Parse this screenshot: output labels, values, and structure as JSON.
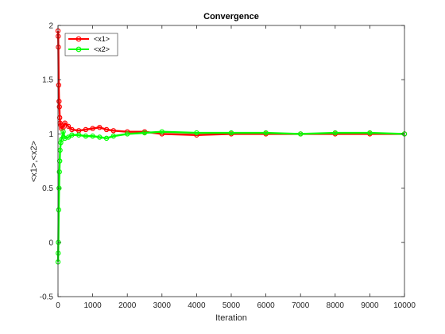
{
  "chart_data": {
    "type": "line",
    "title": "Convergence",
    "xlabel": "Iteration",
    "ylabel": "<x1>,<x2>",
    "xlim": [
      0,
      10000
    ],
    "ylim": [
      -0.5,
      2
    ],
    "xticks": [
      0,
      1000,
      2000,
      3000,
      4000,
      5000,
      6000,
      7000,
      8000,
      9000,
      10000
    ],
    "yticks": [
      -0.5,
      0,
      0.5,
      1,
      1.5,
      2
    ],
    "xtick_labels": [
      "0",
      "1000",
      "2000",
      "3000",
      "4000",
      "5000",
      "6000",
      "7000",
      "8000",
      "9000",
      "10000"
    ],
    "ytick_labels": [
      "-0.5",
      "0",
      "0.5",
      "1",
      "1.5",
      "2"
    ],
    "grid": false,
    "legend_position": "top-left",
    "series": [
      {
        "name": "<x1>",
        "color": "#ff0000",
        "marker": "circle",
        "x": [
          0,
          5,
          10,
          20,
          30,
          40,
          50,
          60,
          80,
          100,
          150,
          200,
          300,
          400,
          600,
          800,
          1000,
          1200,
          1400,
          1600,
          2000,
          2500,
          3000,
          4000,
          5000,
          6000,
          7000,
          8000,
          9000,
          10000
        ],
        "y": [
          1.95,
          1.9,
          1.8,
          1.45,
          1.3,
          1.25,
          1.15,
          1.1,
          1.08,
          1.05,
          1.06,
          1.1,
          1.07,
          1.04,
          1.03,
          1.04,
          1.05,
          1.06,
          1.04,
          1.03,
          1.02,
          1.02,
          1.0,
          0.99,
          1.0,
          1.0,
          1.0,
          1.0,
          1.0,
          1.0
        ]
      },
      {
        "name": "<x2>",
        "color": "#00ff00",
        "marker": "circle",
        "x": [
          0,
          5,
          10,
          20,
          30,
          40,
          50,
          60,
          80,
          100,
          150,
          200,
          300,
          400,
          600,
          800,
          1000,
          1200,
          1400,
          1600,
          2000,
          2500,
          3000,
          4000,
          5000,
          6000,
          7000,
          8000,
          9000,
          10000
        ],
        "y": [
          -0.18,
          -0.1,
          0.0,
          0.3,
          0.5,
          0.65,
          0.75,
          0.85,
          0.92,
          0.95,
          1.02,
          0.96,
          0.97,
          0.99,
          0.99,
          0.98,
          0.98,
          0.97,
          0.96,
          0.98,
          1.0,
          1.01,
          1.02,
          1.01,
          1.01,
          1.01,
          1.0,
          1.01,
          1.01,
          1.0
        ]
      }
    ]
  }
}
